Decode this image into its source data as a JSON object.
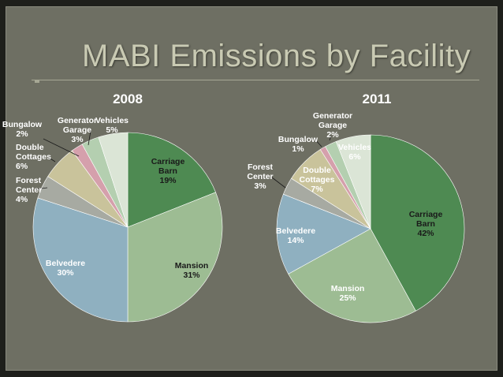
{
  "title": "MABI Emissions by Facility",
  "colors": {
    "Carriage Barn": "#4e8a52",
    "Mansion": "#9dbc93",
    "Belvedere": "#8fb0c0",
    "Forest Center": "#a7aaa2",
    "Double Cottages": "#c9c39b",
    "Bungalow": "#d5a0ac",
    "Generator Garage": "#b4cfb0",
    "Vehicles": "#dbe5d6"
  },
  "chart_data": [
    {
      "type": "pie",
      "title": "2008",
      "categories": [
        "Carriage Barn",
        "Mansion",
        "Belvedere",
        "Forest Center",
        "Double Cottages",
        "Bungalow",
        "Generator Garage",
        "Vehicles"
      ],
      "values": [
        19,
        31,
        30,
        4,
        6,
        2,
        3,
        5
      ],
      "labels": [
        [
          "Carriage",
          "Barn",
          "19%"
        ],
        [
          "Mansion",
          "31%"
        ],
        [
          "Belvedere",
          "30%"
        ],
        [
          "Forest",
          "Center",
          "4%"
        ],
        [
          "Double",
          "Cottages",
          "6%"
        ],
        [
          "Bungalow",
          "2%"
        ],
        [
          "Generator",
          "Garage",
          "3%"
        ],
        [
          "Vehicles",
          "5%"
        ]
      ]
    },
    {
      "type": "pie",
      "title": "2011",
      "categories": [
        "Carriage Barn",
        "Mansion",
        "Belvedere",
        "Forest Center",
        "Double Cottages",
        "Bungalow",
        "Generator Garage",
        "Vehicles"
      ],
      "values": [
        42,
        25,
        14,
        3,
        7,
        1,
        2,
        6
      ],
      "labels": [
        [
          "Carriage",
          "Barn",
          "42%"
        ],
        [
          "Mansion",
          "25%"
        ],
        [
          "Belvedere",
          "14%"
        ],
        [
          "Forest",
          "Center",
          "3%"
        ],
        [
          "Double",
          "Cottages",
          "7%"
        ],
        [
          "Bungalow",
          "1%"
        ],
        [
          "Generator",
          "Garage",
          "2%"
        ],
        [
          "Vehicles",
          "6%"
        ]
      ]
    }
  ]
}
